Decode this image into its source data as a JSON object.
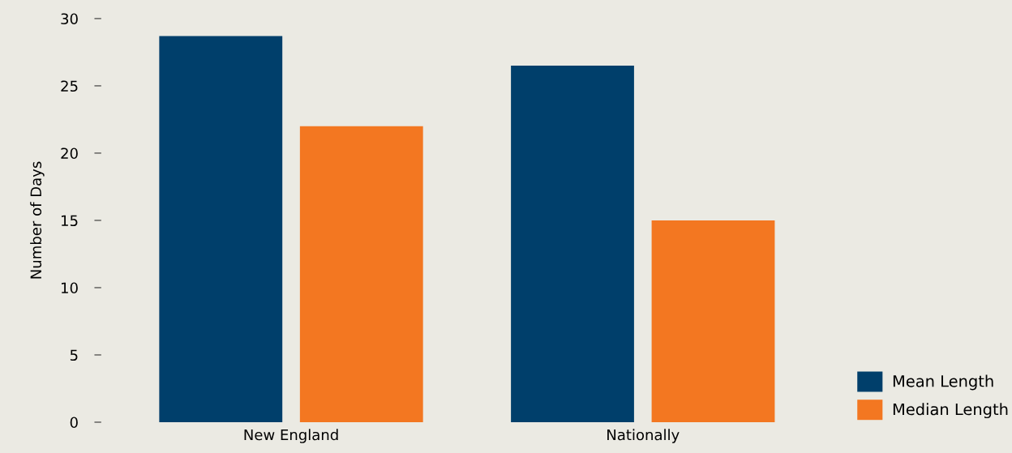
{
  "chart_data": {
    "type": "bar",
    "ylabel": "Number of Days",
    "categories": [
      "New England",
      "Nationally"
    ],
    "series": [
      {
        "name": "Mean Length",
        "color": "#003f6b",
        "values": [
          28.7,
          26.5
        ]
      },
      {
        "name": "Median Length",
        "color": "#f37721",
        "values": [
          22,
          15
        ]
      }
    ],
    "ylim": [
      0,
      30
    ],
    "yticks": [
      0,
      5,
      10,
      15,
      20,
      25,
      30
    ],
    "grid": false,
    "legend": "bottom right"
  }
}
